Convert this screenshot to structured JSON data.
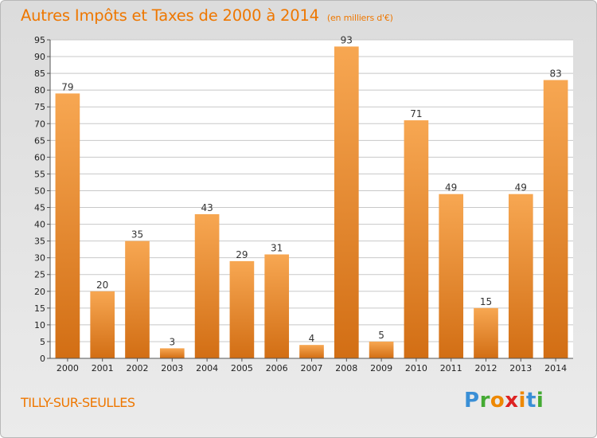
{
  "header": {
    "title": "Autres Impôts et Taxes de 2000 à 2014",
    "unit": "(en milliers d'€)"
  },
  "footer": {
    "town": "TILLY-SUR-SEULLES",
    "brand": "Proxiti"
  },
  "colors": {
    "accent": "#ee7700",
    "bar_light": "#f7a752",
    "bar_dark": "#d26e14",
    "plot_bg": "#ffffff"
  },
  "chart_data": {
    "type": "bar",
    "title": "Autres Impôts et Taxes de 2000 à 2014",
    "xlabel": "",
    "ylabel": "",
    "categories": [
      "2000",
      "2001",
      "2002",
      "2003",
      "2004",
      "2005",
      "2006",
      "2007",
      "2008",
      "2009",
      "2010",
      "2011",
      "2012",
      "2013",
      "2014"
    ],
    "values": [
      79,
      20,
      35,
      3,
      43,
      29,
      31,
      4,
      93,
      5,
      71,
      49,
      15,
      49,
      83
    ],
    "ylim": [
      0,
      95
    ],
    "yticks": [
      0,
      5,
      10,
      15,
      20,
      25,
      30,
      35,
      40,
      45,
      50,
      55,
      60,
      65,
      70,
      75,
      80,
      85,
      90,
      95
    ],
    "grid": true,
    "legend": "none"
  }
}
